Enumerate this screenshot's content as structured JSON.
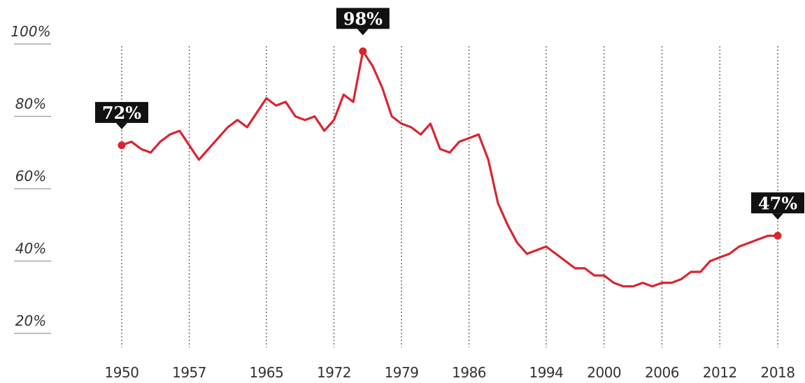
{
  "chart_data": {
    "type": "line",
    "title": "",
    "xlabel": "",
    "ylabel": "",
    "ylim": [
      20,
      100
    ],
    "y_ticks": [
      "100%",
      "80%",
      "60%",
      "40%",
      "20%"
    ],
    "x_ticks": [
      "1950",
      "1957",
      "1965",
      "1972",
      "1979",
      "1986",
      "1994",
      "2000",
      "2006",
      "2012",
      "2018"
    ],
    "grid": "vertical dotted lines at each x tick",
    "colors": {
      "line": "#d9252f",
      "callout_bg": "#111111",
      "callout_text": "#ffffff",
      "grid": "#666666",
      "tick": "#333333"
    },
    "series": [
      {
        "x": [
          1950,
          1951,
          1952,
          1953,
          1954,
          1955,
          1956,
          1957,
          1958,
          1959,
          1960,
          1961,
          1962,
          1963,
          1964,
          1965,
          1966,
          1967,
          1968,
          1969,
          1970,
          1971,
          1972,
          1973,
          1974,
          1975,
          1976,
          1977,
          1978,
          1979,
          1980,
          1981,
          1982,
          1983,
          1984,
          1985,
          1986,
          1987,
          1988,
          1989,
          1990,
          1991,
          1992,
          1993,
          1994,
          1995,
          1996,
          1997,
          1998,
          1999,
          2000,
          2001,
          2002,
          2003,
          2004,
          2005,
          2006,
          2007,
          2008,
          2009,
          2010,
          2011,
          2012,
          2013,
          2014,
          2015,
          2016,
          2017,
          2018
        ],
        "y": [
          72,
          73,
          71,
          70,
          73,
          75,
          76,
          72,
          68,
          71,
          74,
          77,
          79,
          77,
          81,
          85,
          83,
          84,
          80,
          79,
          80,
          76,
          79,
          86,
          84,
          98,
          94,
          88,
          80,
          78,
          77,
          75,
          78,
          71,
          70,
          73,
          74,
          75,
          68,
          56,
          50,
          45,
          42,
          43,
          44,
          42,
          40,
          38,
          38,
          36,
          36,
          34,
          33,
          33,
          34,
          33,
          34,
          34,
          35,
          37,
          37,
          40,
          41,
          42,
          44,
          45,
          46,
          47,
          47
        ]
      }
    ],
    "callouts": [
      {
        "x": 1950,
        "y": 72,
        "label": "72%"
      },
      {
        "x": 1975,
        "y": 98,
        "label": "98%"
      },
      {
        "x": 2018,
        "y": 47,
        "label": "47%"
      }
    ]
  }
}
